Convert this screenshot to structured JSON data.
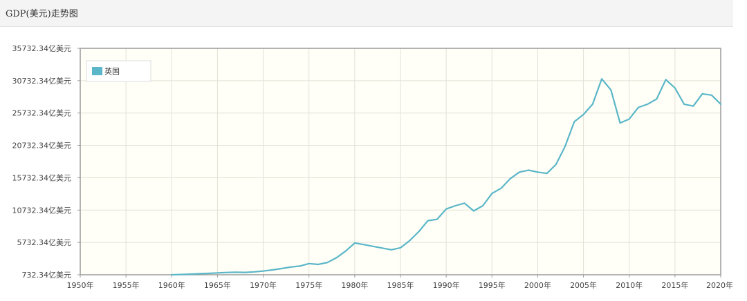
{
  "header": {
    "title": "GDP(美元)走势图"
  },
  "colors": {
    "series": "#5ab6c8",
    "grid": "#e1e1d6",
    "plot_bg": "#fffff7",
    "frame": "#9a9a9a"
  },
  "chart_data": {
    "type": "line",
    "title": "GDP(美元)走势图",
    "xlabel": "",
    "ylabel": "",
    "xlim": [
      1950,
      2020
    ],
    "ylim": [
      732.34,
      35732.34
    ],
    "y_unit_suffix": "亿美元",
    "x_ticks": [
      1950,
      1955,
      1960,
      1965,
      1970,
      1975,
      1980,
      1985,
      1990,
      1995,
      2000,
      2005,
      2010,
      2015,
      2020
    ],
    "x_tick_labels": [
      "1950年",
      "1955年",
      "1960年",
      "1965年",
      "1970年",
      "1975年",
      "1980年",
      "1985年",
      "1990年",
      "1995年",
      "2000年",
      "2005年",
      "2010年",
      "2015年",
      "2020年"
    ],
    "y_ticks": [
      732.34,
      5732.34,
      10732.34,
      15732.34,
      20732.34,
      25732.34,
      30732.34,
      35732.34
    ],
    "y_tick_labels": [
      "732.34亿美元",
      "5732.34亿美元",
      "10732.34亿美元",
      "15732.34亿美元",
      "20732.34亿美元",
      "25732.34亿美元",
      "30732.34亿美元",
      "35732.34亿美元"
    ],
    "grid": true,
    "legend": "top-left",
    "series": [
      {
        "name": "英国",
        "x": [
          1960,
          1961,
          1962,
          1963,
          1964,
          1965,
          1966,
          1967,
          1968,
          1969,
          1970,
          1971,
          1972,
          1973,
          1974,
          1975,
          1976,
          1977,
          1978,
          1979,
          1980,
          1981,
          1982,
          1983,
          1984,
          1985,
          1986,
          1987,
          1988,
          1989,
          1990,
          1991,
          1992,
          1993,
          1994,
          1995,
          1996,
          1997,
          1998,
          1999,
          2000,
          2001,
          2002,
          2003,
          2004,
          2005,
          2006,
          2007,
          2008,
          2009,
          2010,
          2011,
          2012,
          2013,
          2014,
          2015,
          2016,
          2017,
          2018,
          2019,
          2020
        ],
        "values": [
          732,
          780,
          830,
          890,
          950,
          1020,
          1080,
          1130,
          1100,
          1180,
          1310,
          1480,
          1690,
          1930,
          2080,
          2460,
          2330,
          2620,
          3360,
          4380,
          5640,
          5400,
          5130,
          4860,
          4600,
          4900,
          6000,
          7400,
          9100,
          9300,
          10900,
          11400,
          11800,
          10600,
          11400,
          13300,
          14100,
          15600,
          16600,
          16900,
          16600,
          16400,
          17800,
          20600,
          24400,
          25500,
          27100,
          31000,
          29300,
          24200,
          24800,
          26600,
          27100,
          27900,
          30900,
          29600,
          27100,
          26800,
          28700,
          28500,
          27100
        ]
      }
    ]
  }
}
